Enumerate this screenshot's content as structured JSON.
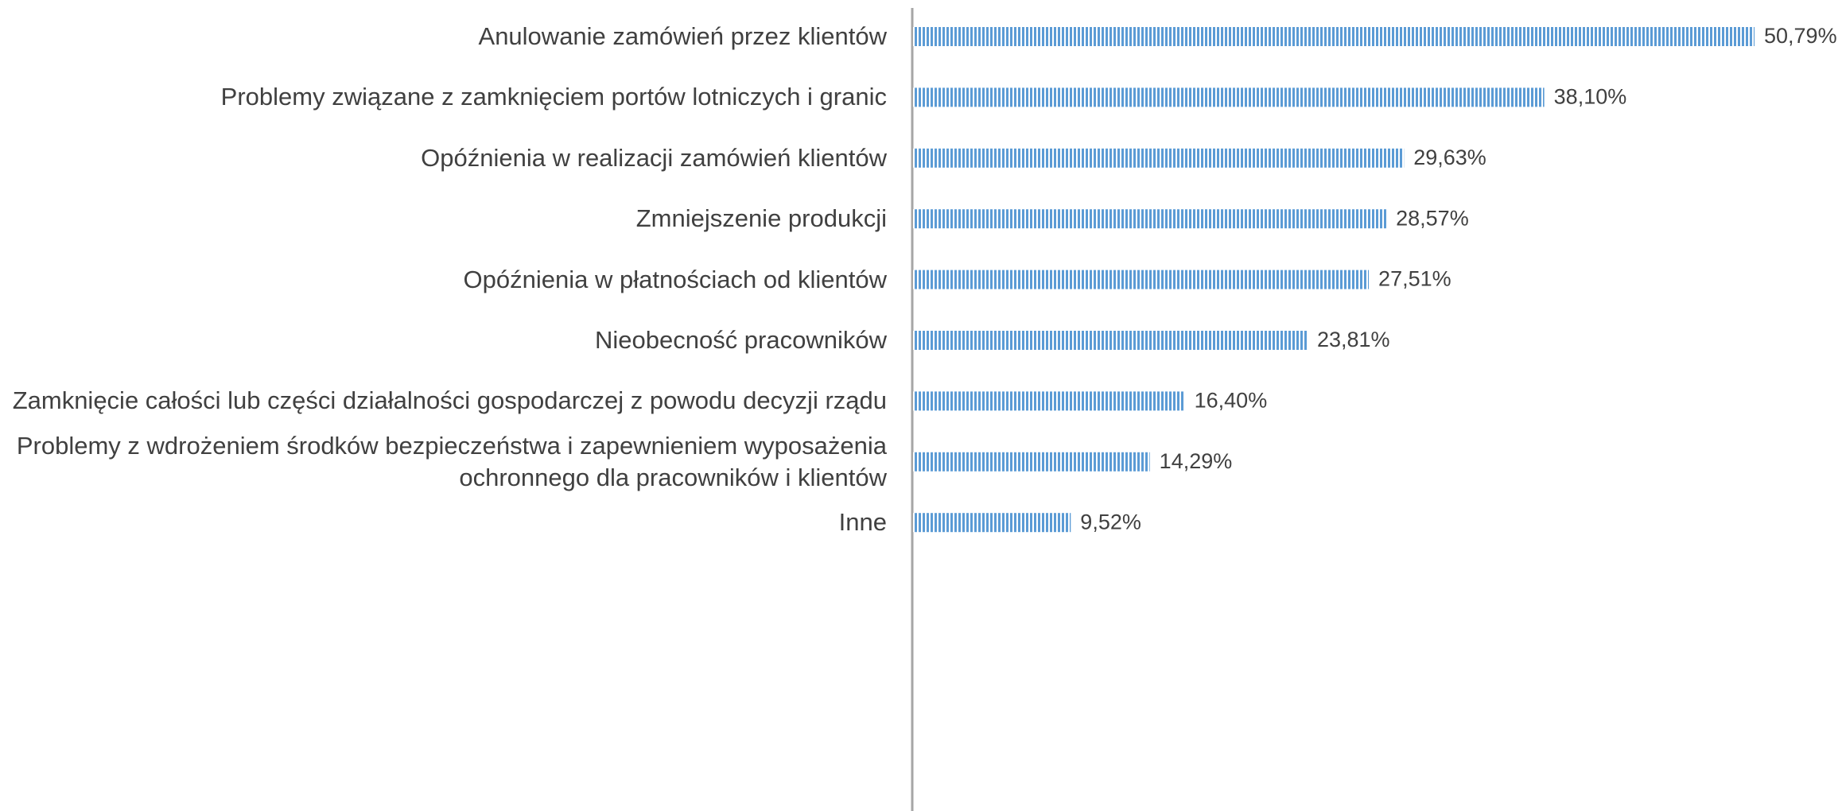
{
  "chart_data": {
    "type": "bar",
    "orientation": "horizontal",
    "categories": [
      "Anulowanie zamówień przez klientów",
      "Problemy związane z zamknięciem portów lotniczych i granic",
      "Opóźnienia w realizacji zamówień klientów",
      "Zmniejszenie produkcji",
      "Opóźnienia w płatnościach od klientów",
      "Nieobecność pracowników",
      "Zamknięcie całości lub części działalności gospodarczej z powodu decyzji rządu",
      "Problemy z wdrożeniem środków bezpieczeństwa i zapewnieniem wyposażenia ochronnego dla pracowników i klientów",
      "Inne"
    ],
    "values": [
      50.79,
      38.1,
      29.63,
      28.57,
      27.51,
      23.81,
      16.4,
      14.29,
      9.52
    ],
    "value_labels": [
      "50,79%",
      "38,10%",
      "29,63%",
      "28,57%",
      "27,51%",
      "23,81%",
      "16,40%",
      "14,29%",
      "9,52%"
    ],
    "color": "#5b9bd5"
  }
}
